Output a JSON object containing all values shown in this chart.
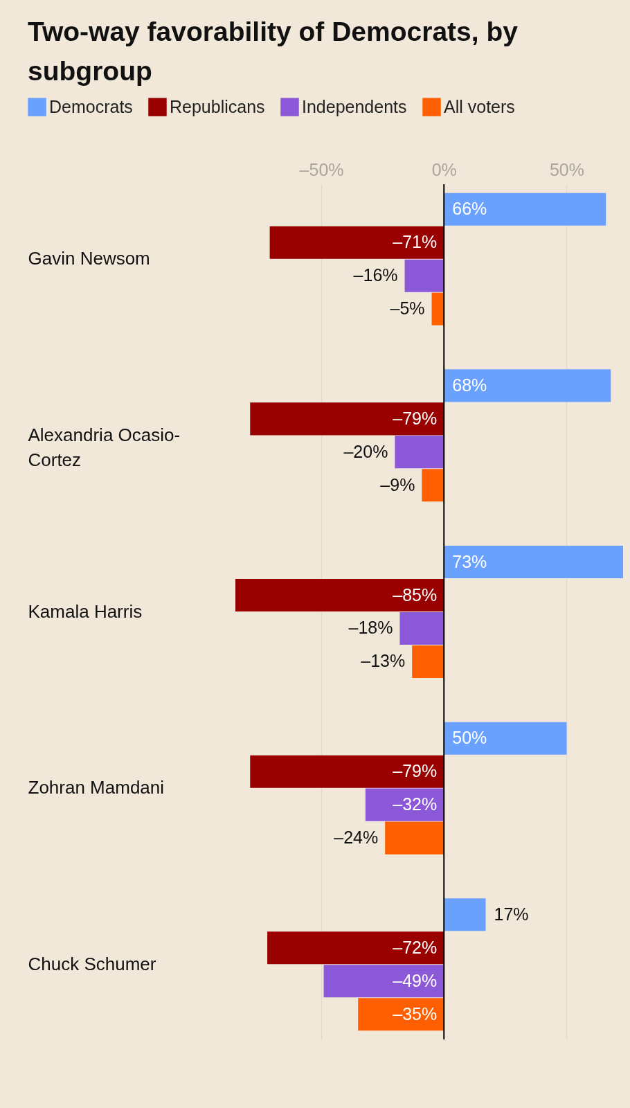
{
  "chart_data": {
    "type": "bar",
    "orientation": "horizontal",
    "title": "Two-way favorability of Democrats, by subgroup",
    "categories": [
      "Gavin Newsom",
      "Alexandria Ocasio-Cortez",
      "Kamala Harris",
      "Zohran Mamdani",
      "Chuck Schumer"
    ],
    "series": [
      {
        "name": "Democrats",
        "color": "#6aa1ff",
        "values": [
          66,
          68,
          73,
          50,
          17
        ],
        "value_labels": [
          "66%",
          "68%",
          "73%",
          "50%",
          "17%"
        ]
      },
      {
        "name": "Republicans",
        "color": "#990000",
        "values": [
          -71,
          -79,
          -85,
          -79,
          -72
        ],
        "value_labels": [
          "–71%",
          "–79%",
          "–85%",
          "–79%",
          "–72%"
        ]
      },
      {
        "name": "Independents",
        "color": "#8b58d8",
        "values": [
          -16,
          -20,
          -18,
          -32,
          -49
        ],
        "value_labels": [
          "–16%",
          "–20%",
          "–18%",
          "–32%",
          "–49%"
        ]
      },
      {
        "name": "All voters",
        "color": "#ff5f00",
        "values": [
          -5,
          -9,
          -13,
          -24,
          -35
        ],
        "value_labels": [
          "–5%",
          "–9%",
          "–13%",
          "–24%",
          "–35%"
        ]
      }
    ],
    "xlim": [
      -85,
      73
    ],
    "xticks": [
      {
        "value": -50,
        "label": "–50%"
      },
      {
        "value": 0,
        "label": "0%"
      },
      {
        "value": 50,
        "label": "50%"
      }
    ],
    "grid": "x",
    "legend": "top",
    "ref_lines": [
      {
        "axis": "x",
        "value": 0,
        "color": "#000000"
      }
    ]
  }
}
